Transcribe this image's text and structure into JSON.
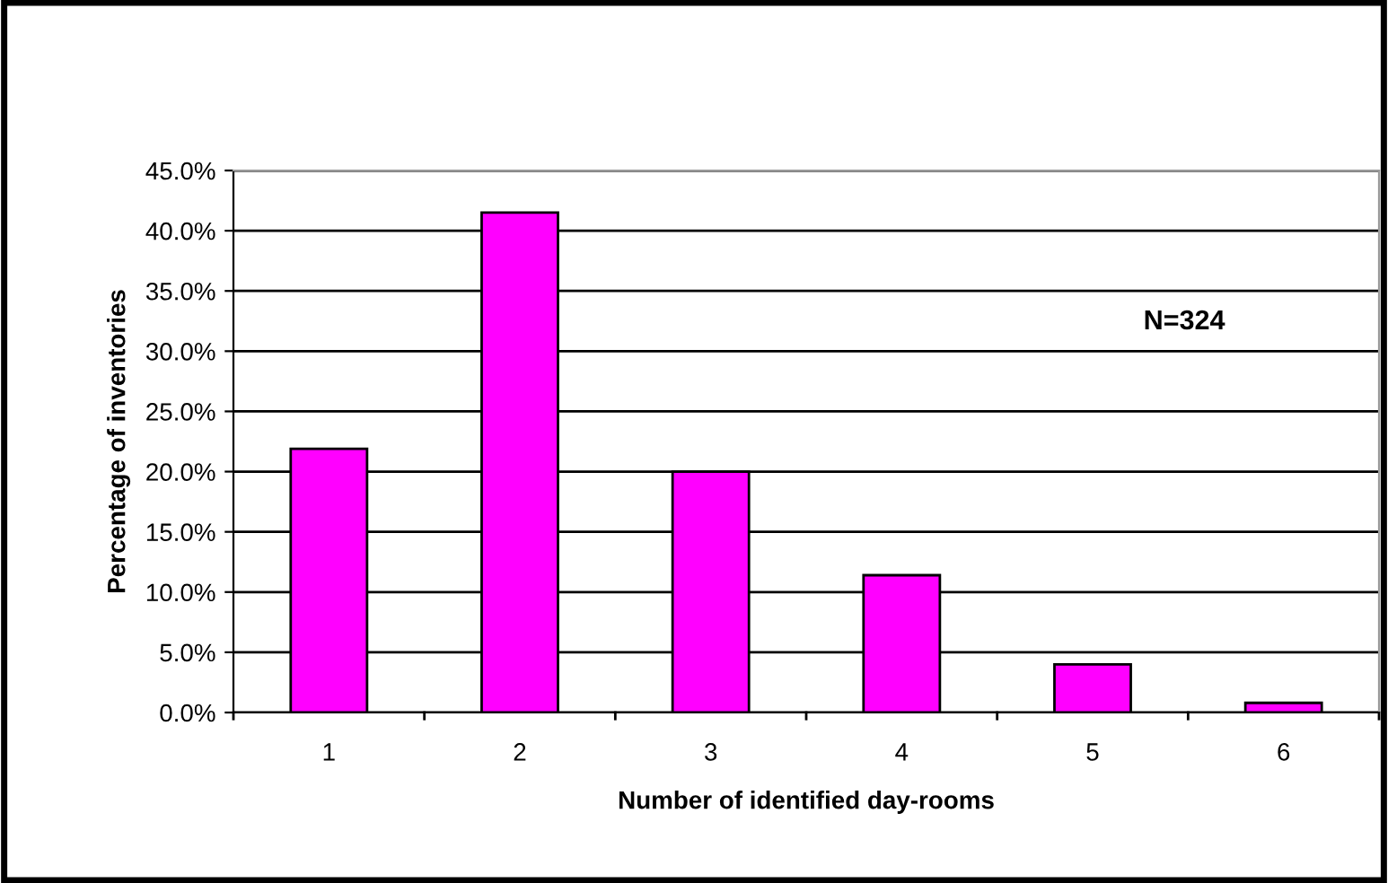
{
  "chart_data": {
    "type": "bar",
    "xlabel": "Number of identified day-rooms",
    "ylabel": "Percentage of inventories",
    "categories": [
      "1",
      "2",
      "3",
      "4",
      "5",
      "6"
    ],
    "values": [
      21.9,
      41.5,
      20.0,
      11.4,
      4.0,
      0.8
    ],
    "color": "#ff00ff",
    "ylim": [
      0,
      45
    ],
    "yticks": [
      {
        "value": 0,
        "label": "0.0%"
      },
      {
        "value": 5,
        "label": "5.0%"
      },
      {
        "value": 10,
        "label": "10.0%"
      },
      {
        "value": 15,
        "label": "15.0%"
      },
      {
        "value": 20,
        "label": "20.0%"
      },
      {
        "value": 25,
        "label": "25.0%"
      },
      {
        "value": 30,
        "label": "30.0%"
      },
      {
        "value": 35,
        "label": "35.0%"
      },
      {
        "value": 40,
        "label": "40.0%"
      },
      {
        "value": 45,
        "label": "45.0%"
      }
    ],
    "grid": "y",
    "annotations": [
      "N=324"
    ]
  }
}
